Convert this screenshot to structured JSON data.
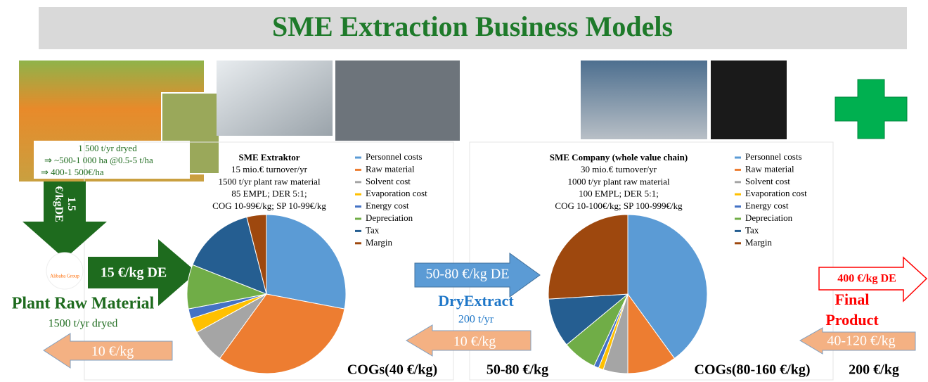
{
  "title": "SME Extraction Business Models",
  "raw_material": {
    "lines": [
      "1 500 t/yr dryed",
      "⇒   ~500-1 000 ha @0.5-5 t/ha",
      "⇒   400-1 500€/ha"
    ],
    "name": "Plant Raw Material",
    "amount": "1500 t/yr dryed",
    "logo": "Alibaba Group"
  },
  "arrows": {
    "down_price": [
      "1.5",
      "€/kgDE"
    ],
    "plant_price": "15 €/kg DE",
    "return_1": "10 €/kg",
    "extract_price": "50-80 €/kg DE",
    "return_2": "10 €/kg",
    "final_price": "400 €/kg DE",
    "return_3": "40-120 €/kg"
  },
  "dry_extract": {
    "name": "DryExtract",
    "amount": "200 t/yr"
  },
  "final_product": [
    "Final",
    "Product"
  ],
  "footer": {
    "cogs_1": "COGs(40 €/kg)",
    "price_1": "50-80 €/kg",
    "cogs_2": "COGs(80-160 €/kg)",
    "price_2": "200 €/kg"
  },
  "chart_data": [
    {
      "type": "pie",
      "title": "SME Extraktor",
      "notes": [
        "15 mio.€ turnover/yr",
        "1500 t/yr plant raw material",
        "85 EMPL; DER 5:1;",
        "COG 10-99€/kg; SP 10-99€/kg"
      ],
      "categories": [
        "Personnel costs",
        "Raw material",
        "Solvent cost",
        "Evaporation cost",
        "Energy cost",
        "Depreciation",
        "Tax",
        "Margin"
      ],
      "values": [
        28,
        32,
        7,
        3,
        2,
        9,
        15,
        4
      ],
      "colors": [
        "#5b9bd5",
        "#ed7d31",
        "#a5a5a5",
        "#ffc000",
        "#4472c4",
        "#70ad47",
        "#255e91",
        "#9e480e"
      ]
    },
    {
      "type": "pie",
      "title": "SME Company (whole value chain)",
      "notes": [
        "30 mio.€ turnover/yr",
        "1000 t/yr plant raw material",
        "100 EMPL; DER 5:1;",
        "COG 10-100€/kg; SP 100-999€/kg"
      ],
      "categories": [
        "Personnel costs",
        "Raw material",
        "Solvent cost",
        "Evaporation cost",
        "Energy cost",
        "Depreciation",
        "Tax",
        "Margin"
      ],
      "values": [
        40,
        10,
        5,
        1,
        1,
        7,
        10,
        26
      ],
      "colors": [
        "#5b9bd5",
        "#ed7d31",
        "#a5a5a5",
        "#ffc000",
        "#4472c4",
        "#70ad47",
        "#255e91",
        "#9e480e"
      ]
    }
  ]
}
